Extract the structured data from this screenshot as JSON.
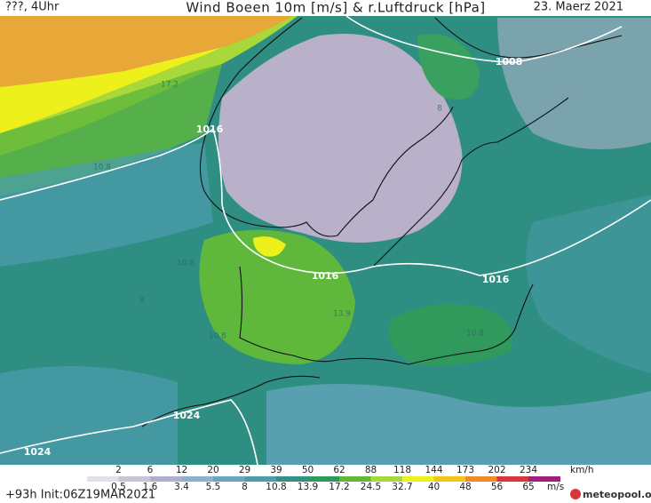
{
  "header": {
    "left": "???, 4Uhr",
    "title": "Wind Boeen 10m [m/s] & r.Luftdruck [hPa]",
    "date": "23. Maerz 2021"
  },
  "isobar_labels": [
    "1008",
    "1016",
    "1016",
    "1016",
    "1024",
    "1024"
  ],
  "field_labels": [
    "17.2",
    "10.8",
    "10.8",
    "10.8",
    "10.8",
    "13.9",
    "8",
    "8"
  ],
  "legend": {
    "kmh": [
      2,
      6,
      12,
      20,
      29,
      39,
      50,
      62,
      88,
      118,
      144,
      173,
      202,
      234
    ],
    "kmh_unit": "km/h",
    "ms": [
      0.5,
      1.6,
      3.4,
      5.5,
      8,
      10.8,
      13.9,
      17.2,
      24.5,
      32.7,
      40,
      48,
      56,
      65
    ],
    "ms_unit": "m/s",
    "colors": [
      "#e4e0ea",
      "#c9c3d6",
      "#aeb0cc",
      "#8fb0cc",
      "#6aa6c2",
      "#4c9cae",
      "#348f84",
      "#2f9a5c",
      "#5fb83c",
      "#a8d83a",
      "#eef01c",
      "#f6c418",
      "#f08a2a",
      "#d8383c",
      "#a02080"
    ]
  },
  "footer": {
    "init": "+93h Init:06Z19MAR2021",
    "brand": "meteopool.org"
  }
}
